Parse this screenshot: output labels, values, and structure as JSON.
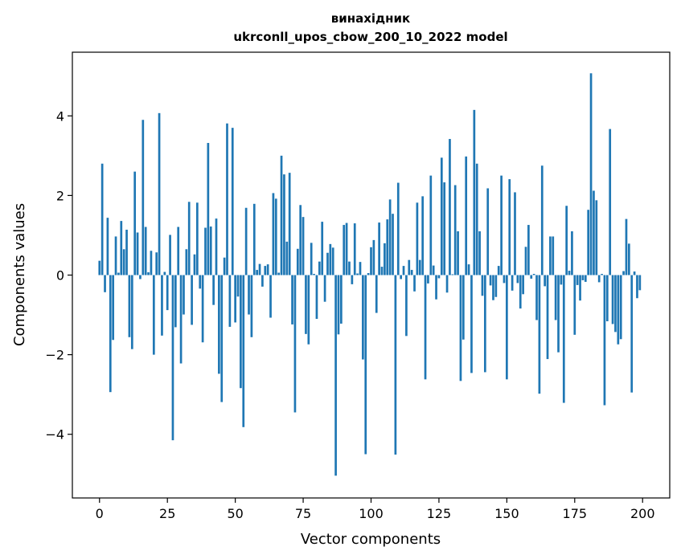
{
  "chart_data": {
    "type": "bar",
    "title": "винахідник",
    "subtitle": "ukrconll_upos_cbow_200_10_2022 model",
    "xlabel": "Vector components",
    "ylabel": "Components values",
    "xlim": [
      -10,
      210
    ],
    "ylim": [
      -5.6,
      5.6
    ],
    "xticks": [
      0,
      25,
      50,
      75,
      100,
      125,
      150,
      175,
      200
    ],
    "yticks": [
      -4,
      -2,
      0,
      2,
      4
    ],
    "ytick_labels": [
      "−4",
      "−2",
      "0",
      "2",
      "4"
    ],
    "grid": false,
    "bar_color": "#1f77b4",
    "values": [
      0.36,
      2.8,
      -0.43,
      1.44,
      -2.94,
      -1.63,
      0.97,
      0.06,
      1.36,
      0.65,
      1.14,
      -1.56,
      -1.86,
      2.6,
      1.07,
      -0.1,
      3.9,
      1.21,
      0.07,
      0.61,
      -2.0,
      0.57,
      4.07,
      -1.52,
      0.08,
      -0.88,
      1.01,
      -4.15,
      -1.31,
      1.21,
      -2.22,
      -0.99,
      0.65,
      1.84,
      -1.25,
      0.52,
      1.82,
      -0.34,
      -1.69,
      1.19,
      3.32,
      1.22,
      -0.75,
      1.42,
      -2.48,
      -3.19,
      0.44,
      3.81,
      -1.3,
      3.7,
      -1.19,
      -0.54,
      -2.84,
      -3.82,
      1.69,
      -0.99,
      -1.56,
      1.79,
      0.13,
      0.28,
      -0.29,
      0.23,
      0.27,
      -1.07,
      2.06,
      1.92,
      0.06,
      3.0,
      2.53,
      0.84,
      2.57,
      -1.24,
      -3.45,
      0.66,
      1.76,
      1.46,
      -1.48,
      -1.74,
      0.81,
      0.03,
      -1.1,
      0.34,
      1.34,
      -0.67,
      0.56,
      0.78,
      0.69,
      -5.04,
      -1.49,
      -1.22,
      1.26,
      1.31,
      0.34,
      -0.23,
      1.3,
      0.04,
      0.33,
      -2.12,
      -4.5,
      0.05,
      0.7,
      0.88,
      -0.95,
      1.32,
      0.21,
      0.8,
      1.4,
      1.9,
      1.54,
      -4.51,
      2.32,
      -0.1,
      0.23,
      -1.53,
      0.38,
      0.13,
      -0.41,
      1.82,
      0.38,
      1.98,
      -2.62,
      -0.21,
      2.5,
      0.24,
      -0.61,
      -0.08,
      2.95,
      2.33,
      -0.44,
      3.42,
      0.02,
      2.26,
      1.1,
      -2.66,
      -1.62,
      2.98,
      0.27,
      -2.46,
      4.15,
      2.8,
      1.1,
      -0.52,
      -2.44,
      2.18,
      -0.26,
      -0.63,
      -0.55,
      0.23,
      2.5,
      -0.2,
      -2.62,
      2.41,
      -0.39,
      2.08,
      -0.2,
      -0.84,
      -0.48,
      0.71,
      1.26,
      -0.09,
      0.03,
      -1.13,
      -2.98,
      2.75,
      -0.28,
      -2.11,
      0.97,
      0.97,
      -1.13,
      -1.94,
      -0.24,
      -3.21,
      1.74,
      0.11,
      1.1,
      -1.5,
      -0.25,
      -0.64,
      -0.13,
      -0.17,
      1.64,
      5.07,
      2.12,
      1.88,
      -0.18,
      0.03,
      -3.27,
      -1.16,
      3.67,
      -1.23,
      -1.43,
      -1.74,
      -1.61,
      0.1,
      1.41,
      0.79,
      -2.95,
      0.09,
      -0.58,
      -0.38
    ]
  }
}
